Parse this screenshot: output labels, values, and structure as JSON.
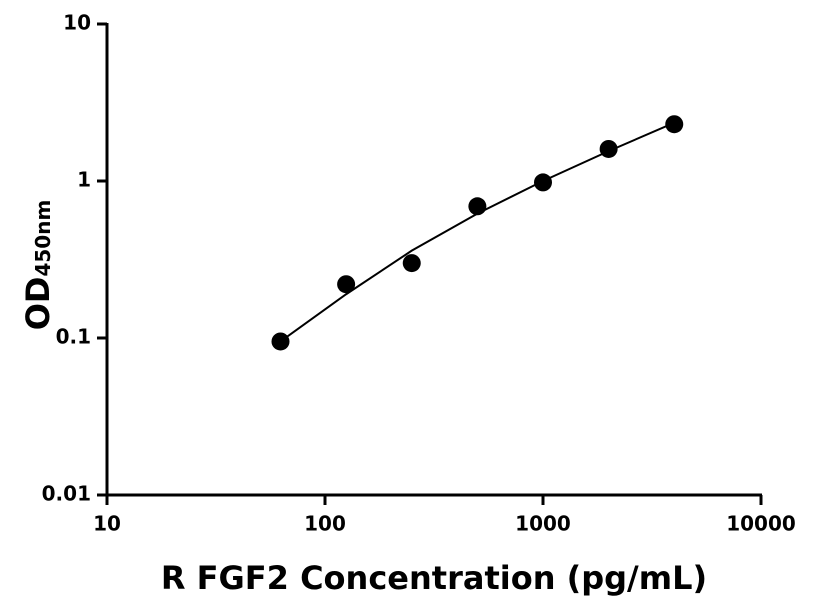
{
  "chart_data": {
    "type": "scatter",
    "x_label": "R FGF2 Concentration (pg/mL)",
    "y_label": "OD",
    "y_label_subscript": "450nm",
    "x": [
      62.5,
      125,
      250,
      500,
      1000,
      2000,
      4000
    ],
    "values": [
      0.095,
      0.22,
      0.3,
      0.69,
      0.98,
      1.6,
      2.3
    ],
    "color": "#000000",
    "fit_curve": {
      "x": [
        62.5,
        125,
        250,
        500,
        1000,
        2000,
        4000
      ],
      "values": [
        0.095,
        0.19,
        0.36,
        0.62,
        1.0,
        1.55,
        2.35
      ]
    },
    "xscale": "log",
    "yscale": "log",
    "xlim": [
      10,
      10000
    ],
    "xticks": [
      10,
      100,
      1000,
      10000
    ],
    "ylim": [
      0.01,
      10
    ],
    "yticks": [
      0.01,
      0.1,
      1,
      10
    ],
    "grid": false
  }
}
